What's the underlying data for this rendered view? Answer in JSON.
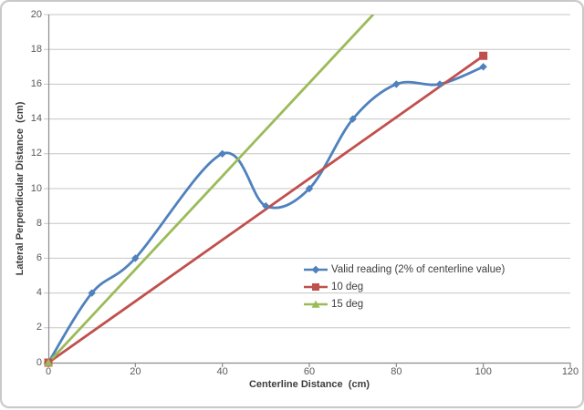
{
  "chart": {
    "border_color": "#C9C9C9",
    "background": "#FFFFFF"
  },
  "chart_data": {
    "type": "line",
    "title": "",
    "xlabel": "Centerline Distance  (cm)",
    "ylabel": "Lateral Perpendicular Distance  (cm)",
    "xlim": [
      0,
      120
    ],
    "ylim": [
      0,
      20
    ],
    "x_ticks": [
      0,
      20,
      40,
      60,
      80,
      100,
      120
    ],
    "y_ticks": [
      0,
      2,
      4,
      6,
      8,
      10,
      12,
      14,
      16,
      18,
      20
    ],
    "grid": "horizontal",
    "legend_position": "inside-right-middle",
    "axis_color": "#8C8C8C",
    "grid_color": "#C6C6C6",
    "tick_text_color": "#595959",
    "title_text_color": "#3D3D3D",
    "series": [
      {
        "name": "Valid reading (2% of centerline value)",
        "color": "#4F81BD",
        "marker": "diamond",
        "smooth": true,
        "x": [
          0,
          10,
          20,
          40,
          50,
          60,
          70,
          80,
          90,
          100
        ],
        "y": [
          0,
          4,
          6,
          12,
          9,
          10,
          14,
          16,
          16,
          17
        ]
      },
      {
        "name": "10 deg",
        "color": "#C0504D",
        "marker": "square",
        "smooth": false,
        "x": [
          0,
          100
        ],
        "y": [
          0,
          17.63
        ]
      },
      {
        "name": "15 deg",
        "color": "#9BBB59",
        "marker": "triangle",
        "smooth": false,
        "x": [
          0,
          100
        ],
        "y": [
          0,
          26.79
        ]
      }
    ]
  }
}
